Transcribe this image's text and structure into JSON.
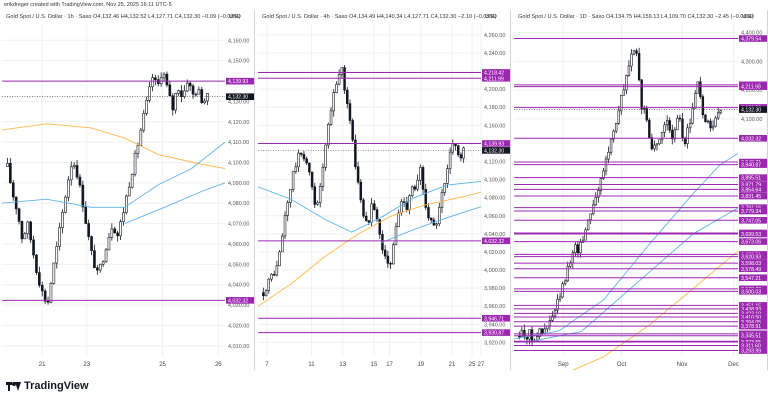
{
  "header": {
    "creator_line": "erikdreger created with TradingView.com, Nov 25, 2025 16:11 UTC-5"
  },
  "footer": {
    "brand": "TradingView"
  },
  "colors": {
    "grid": "#eef0f3",
    "candle": "#131722",
    "level": "#9c27b0",
    "level_fill": "#9c27b0",
    "price_box": "#131722",
    "ma_orange": "#ffb74d",
    "ma_blue": "#5fb4e6",
    "dotted_price": "#333333"
  },
  "panels": [
    {
      "id": "1h",
      "title": "Gold Spot / U.S. Dollar · 1h · Saxo",
      "ohlc": "O4,132.46 H4,132.52 L4,127.71 C4,132.30 −0.09 (−0.00%)",
      "currency": "USD",
      "chart_data": {
        "type": "candlestick",
        "ylim": [
          4005,
          4168
        ],
        "y_ticks": [
          "4,160.00",
          "4,150.00",
          "4,140.00",
          "4,130.00",
          "4,120.00",
          "4,110.00",
          "4,100.00",
          "4,090.00",
          "4,080.00",
          "4,070.00",
          "4,060.00",
          "4,050.00",
          "4,040.00",
          "4,030.00",
          "4,020.00",
          "4,010.00"
        ],
        "x_ticks": [
          {
            "label": "21",
            "pos": 0.18
          },
          {
            "label": "23",
            "pos": 0.38
          },
          {
            "label": "25",
            "pos": 0.72
          },
          {
            "label": "26",
            "pos": 0.97
          }
        ],
        "levels": [
          {
            "value": 4139.93,
            "label": "4,139.93"
          },
          {
            "value": 4032.32,
            "label": "4,032.32"
          }
        ],
        "last_price": {
          "value": 4132.3,
          "label": "4,132.30"
        },
        "close_path": [
          4098,
          4085,
          4076,
          4062,
          4070,
          4058,
          4045,
          4036,
          4030,
          4046,
          4060,
          4075,
          4090,
          4102,
          4094,
          4081,
          4066,
          4053,
          4045,
          4052,
          4062,
          4070,
          4064,
          4074,
          4086,
          4097,
          4108,
          4120,
          4131,
          4142,
          4137,
          4146,
          4136,
          4126,
          4138,
          4132,
          4141,
          4133,
          4136,
          4130,
          4132
        ],
        "ma_series": [
          {
            "color_key": "ma_orange",
            "points": [
              [
                0,
                4116
              ],
              [
                0.2,
                4119
              ],
              [
                0.4,
                4117
              ],
              [
                0.55,
                4112
              ],
              [
                0.7,
                4104
              ],
              [
                0.9,
                4099
              ],
              [
                1,
                4097
              ]
            ]
          },
          {
            "color_key": "ma_blue",
            "points": [
              [
                0,
                4080
              ],
              [
                0.2,
                4082
              ],
              [
                0.4,
                4078
              ],
              [
                0.55,
                4078
              ],
              [
                0.7,
                4089
              ],
              [
                0.85,
                4097
              ],
              [
                1,
                4110
              ]
            ]
          },
          {
            "color_key": "ma_blue",
            "points": [
              [
                0.55,
                4070
              ],
              [
                0.75,
                4079
              ],
              [
                0.9,
                4086
              ],
              [
                1,
                4090
              ]
            ]
          }
        ]
      }
    },
    {
      "id": "4h",
      "title": "Gold Spot / U.S. Dollar · 4h · Saxo",
      "ohlc": "O4,134.49 H4,140.34 L4,127.71 C4,132.30 −2.10 (−0.05%)",
      "currency": "USD",
      "chart_data": {
        "type": "candlestick",
        "ylim": [
          3905,
          4272
        ],
        "y_ticks": [
          "4,260.00",
          "4,240.00",
          "4,220.00",
          "4,200.00",
          "4,180.00",
          "4,160.00",
          "4,140.00",
          "4,120.00",
          "4,100.00",
          "4,080.00",
          "4,060.00",
          "4,040.00",
          "4,020.00",
          "4,000.00",
          "3,980.00",
          "3,960.00",
          "3,940.00",
          "3,920.00"
        ],
        "x_ticks": [
          {
            "label": "7",
            "pos": 0.04
          },
          {
            "label": "11",
            "pos": 0.24
          },
          {
            "label": "13",
            "pos": 0.38
          },
          {
            "label": "15",
            "pos": 0.52
          },
          {
            "label": "17",
            "pos": 0.59
          },
          {
            "label": "19",
            "pos": 0.73
          },
          {
            "label": "21",
            "pos": 0.87
          },
          {
            "label": "25",
            "pos": 0.96
          },
          {
            "label": "27",
            "pos": 1.0
          }
        ],
        "levels": [
          {
            "value": 4218.42,
            "label": "4,218.42"
          },
          {
            "value": 4211.99,
            "label": "4,211.99"
          },
          {
            "value": 4139.93,
            "label": "4,139.93"
          },
          {
            "value": 4032.32,
            "label": "4,032.32"
          },
          {
            "value": 3946.71,
            "label": "3,946.71"
          },
          {
            "value": 3930.87,
            "label": "3,930.87"
          }
        ],
        "last_price": {
          "value": 4132.3,
          "label": "4,132.30"
        },
        "close_path": [
          3975,
          3985,
          3995,
          4000,
          4025,
          4060,
          4085,
          4110,
          4125,
          4130,
          4118,
          4096,
          4070,
          4088,
          4126,
          4160,
          4190,
          4212,
          4224,
          4190,
          4164,
          4120,
          4092,
          4058,
          4048,
          4082,
          4060,
          4030,
          4016,
          3998,
          4035,
          4062,
          4080,
          4070,
          4095,
          4086,
          4112,
          4078,
          4060,
          4046,
          4055,
          4082,
          4100,
          4132,
          4144,
          4122,
          4132
        ],
        "ma_series": [
          {
            "color_key": "ma_orange",
            "points": [
              [
                0,
                3960
              ],
              [
                0.15,
                3985
              ],
              [
                0.3,
                4015
              ],
              [
                0.45,
                4040
              ],
              [
                0.6,
                4060
              ],
              [
                0.75,
                4072
              ],
              [
                0.9,
                4080
              ],
              [
                1,
                4086
              ]
            ]
          },
          {
            "color_key": "ma_blue",
            "points": [
              [
                0,
                4092
              ],
              [
                0.15,
                4078
              ],
              [
                0.3,
                4056
              ],
              [
                0.42,
                4042
              ],
              [
                0.55,
                4058
              ],
              [
                0.7,
                4080
              ],
              [
                0.85,
                4094
              ],
              [
                1,
                4098
              ]
            ]
          },
          {
            "color_key": "ma_blue",
            "points": [
              [
                0.55,
                4030
              ],
              [
                0.7,
                4045
              ],
              [
                0.85,
                4058
              ],
              [
                1,
                4070
              ]
            ]
          }
        ]
      }
    },
    {
      "id": "1D",
      "title": "Gold Spot / U.S. Dollar · 1D · Saxo",
      "ohlc": "O4,134.75 H4,159.13 L4,109.70 C4,132.30 −2.45 (−0.06%)",
      "currency": "USD",
      "chart_data": {
        "type": "candlestick",
        "ylim": [
          3275,
          4430
        ],
        "y_ticks": [
          "4,400.00",
          "4,300.00",
          "4,200.00",
          "4,100.00"
        ],
        "x_ticks": [
          {
            "label": "Sep",
            "pos": 0.22
          },
          {
            "label": "Oct",
            "pos": 0.48
          },
          {
            "label": "Nov",
            "pos": 0.75
          },
          {
            "label": "Dec",
            "pos": 0.98
          }
        ],
        "levels": [
          {
            "value": 4379.54,
            "label": "4,379.54"
          },
          {
            "value": 4218.42,
            "label": "4,218.42"
          },
          {
            "value": 4211.99,
            "label": "4,211.99"
          },
          {
            "value": 4139.93,
            "label": "4,139.93"
          },
          {
            "value": 4032.32,
            "label": "4,032.32"
          },
          {
            "value": 3949.71,
            "label": "3,949.71"
          },
          {
            "value": 3940.87,
            "label": "3,940.87"
          },
          {
            "value": 3895.51,
            "label": "3,895.51"
          },
          {
            "value": 3871.79,
            "label": "3,871.79"
          },
          {
            "value": 3854.64,
            "label": "3,854.64"
          },
          {
            "value": 3831.45,
            "label": "3,831.45"
          },
          {
            "value": 3791.16,
            "label": "3,791.16"
          },
          {
            "value": 3779.34,
            "label": "3,779.34"
          },
          {
            "value": 3747.05,
            "label": "3,747.05"
          },
          {
            "value": 3703.02,
            "label": "3,703.02"
          },
          {
            "value": 3699.53,
            "label": "3,699.53"
          },
          {
            "value": 3673.06,
            "label": "3,673.06"
          },
          {
            "value": 3628.51,
            "label": "3,628.51"
          },
          {
            "value": 3620.93,
            "label": "3,620.93"
          },
          {
            "value": 3598.03,
            "label": "3,598.03"
          },
          {
            "value": 3578.49,
            "label": "3,578.49"
          },
          {
            "value": 3547.21,
            "label": "3,547.21"
          },
          {
            "value": 3508.7,
            "label": "3,508.70"
          },
          {
            "value": 3500.03,
            "label": "3,500.03"
          },
          {
            "value": 3451.15,
            "label": "3,451.15"
          },
          {
            "value": 3438.93,
            "label": "3,438.93"
          },
          {
            "value": 3423.1,
            "label": "3,423.10"
          },
          {
            "value": 3410.5,
            "label": "3,410.50"
          },
          {
            "value": 3394.05,
            "label": "3,394.05"
          },
          {
            "value": 3378.91,
            "label": "3,378.91"
          },
          {
            "value": 3352.18,
            "label": "3,352.18"
          },
          {
            "value": 3345.51,
            "label": "3,345.51"
          },
          {
            "value": 3326.38,
            "label": "3,326.38"
          },
          {
            "value": 3323.55,
            "label": "3,323.55"
          },
          {
            "value": 3311.6,
            "label": "3,311.60"
          },
          {
            "value": 3293.99,
            "label": "3,293.99"
          }
        ],
        "last_price": {
          "value": 4132.3,
          "label": "4,132.30"
        },
        "close_path": [
          3345,
          3362,
          3340,
          3355,
          3332,
          3345,
          3360,
          3352,
          3370,
          3385,
          3410,
          3440,
          3475,
          3510,
          3545,
          3590,
          3640,
          3655,
          3640,
          3680,
          3710,
          3760,
          3790,
          3830,
          3860,
          3890,
          3950,
          3985,
          4040,
          4080,
          4120,
          4180,
          4215,
          4280,
          4330,
          4340,
          4290,
          4120,
          4150,
          4060,
          4005,
          4020,
          3990,
          4040,
          4090,
          4110,
          4000,
          4050,
          4110,
          4080,
          4000,
          4060,
          4100,
          4180,
          4220,
          4180,
          4060,
          4110,
          4050,
          4080,
          4120,
          4132
        ],
        "ma_series": [
          {
            "color_key": "ma_orange",
            "points": [
              [
                0,
                3150
              ],
              [
                0.2,
                3205
              ],
              [
                0.4,
                3272
              ],
              [
                0.6,
                3380
              ],
              [
                0.8,
                3510
              ],
              [
                1,
                3640
              ]
            ]
          },
          {
            "color_key": "ma_blue",
            "points": [
              [
                0,
                3335
              ],
              [
                0.2,
                3362
              ],
              [
                0.4,
                3470
              ],
              [
                0.6,
                3660
              ],
              [
                0.8,
                3840
              ],
              [
                0.92,
                3940
              ],
              [
                1,
                3980
              ]
            ]
          },
          {
            "color_key": "ma_blue",
            "points": [
              [
                0.05,
                3322
              ],
              [
                0.3,
                3360
              ],
              [
                0.55,
                3530
              ],
              [
                0.8,
                3700
              ],
              [
                1,
                3790
              ]
            ]
          }
        ]
      }
    }
  ]
}
